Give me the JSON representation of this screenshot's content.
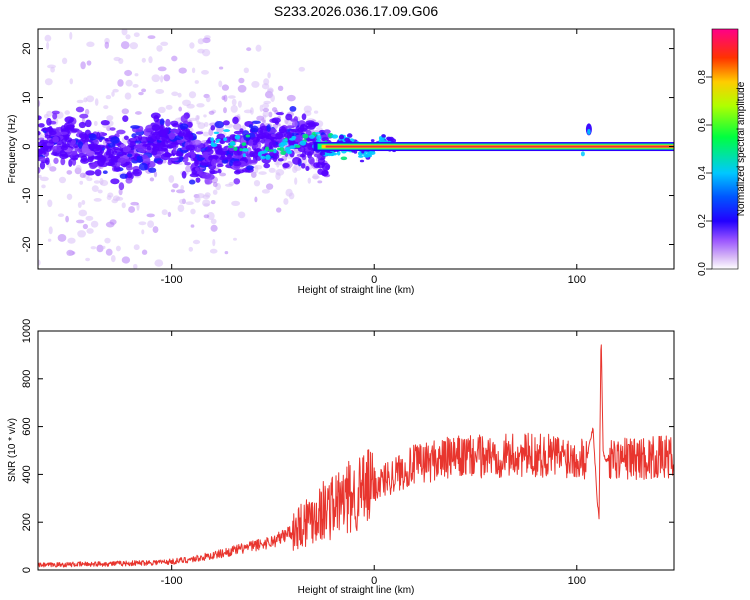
{
  "figure_title": "S233.2026.036.17.09.G06",
  "colors": {
    "snr_line": "#e8352e",
    "spectral_ridge": "#e8303a",
    "axis": "#000000"
  },
  "chart_data": [
    {
      "type": "heatmap",
      "title": "S233.2026.036.17.09.G06",
      "xlabel": "Height of straight line (km)",
      "ylabel": "Frequency (Hz)",
      "xlim": [
        -166,
        148
      ],
      "ylim": [
        -25,
        24
      ],
      "x_ticks": [
        -100,
        0,
        100
      ],
      "y_ticks": [
        -20,
        -10,
        0,
        10,
        20
      ],
      "x_tick_labels": [
        "-100",
        "0",
        "100"
      ],
      "y_tick_labels": [
        "-20",
        "-10",
        "0",
        "10",
        "20"
      ],
      "colorbar": {
        "label": "Normalized spectral amplitude",
        "range": [
          0,
          1
        ],
        "ticks": [
          0.0,
          0.2,
          0.4,
          0.6,
          0.8
        ],
        "tick_labels": [
          "0.0",
          "0.2",
          "0.4",
          "0.6",
          "0.8"
        ],
        "colormap": [
          "#ffffff",
          "#c8a0f0",
          "#5a00ff",
          "#0000ff",
          "#00c8ff",
          "#00ff00",
          "#ffff00",
          "#ff8800",
          "#ff0044",
          "#ff00aa"
        ]
      },
      "ridge": {
        "frequency_hz": 0,
        "x_start_km": -30,
        "x_end_km": 148,
        "disturbance_x_km": 106
      }
    },
    {
      "type": "line",
      "xlabel": "Height of straight line (km)",
      "ylabel": "SNR (10 * v/v)",
      "xlim": [
        -166,
        148
      ],
      "ylim": [
        0,
        1000
      ],
      "x_ticks": [
        -100,
        0,
        100
      ],
      "y_ticks": [
        0,
        200,
        400,
        600,
        800,
        1000
      ],
      "x_tick_labels": [
        "-100",
        "0",
        "100"
      ],
      "y_tick_labels": [
        "0",
        "200",
        "400",
        "600",
        "800",
        "1000"
      ],
      "series": [
        {
          "name": "SNR",
          "x": [
            -166,
            -140,
            -120,
            -100,
            -90,
            -80,
            -70,
            -60,
            -50,
            -45,
            -40,
            -35,
            -30,
            -25,
            -20,
            -15,
            -10,
            -5,
            0,
            5,
            10,
            15,
            20,
            25,
            30,
            40,
            50,
            60,
            70,
            80,
            90,
            100,
            105,
            108,
            110,
            111,
            112,
            113,
            114,
            116,
            120,
            130,
            140,
            148
          ],
          "values": [
            20,
            25,
            28,
            35,
            45,
            60,
            80,
            100,
            120,
            140,
            170,
            200,
            230,
            250,
            270,
            290,
            310,
            330,
            350,
            380,
            400,
            420,
            440,
            450,
            460,
            470,
            475,
            478,
            480,
            480,
            478,
            475,
            470,
            600,
            300,
            220,
            1000,
            500,
            460,
            470,
            470,
            468,
            470,
            472
          ]
        }
      ]
    }
  ]
}
